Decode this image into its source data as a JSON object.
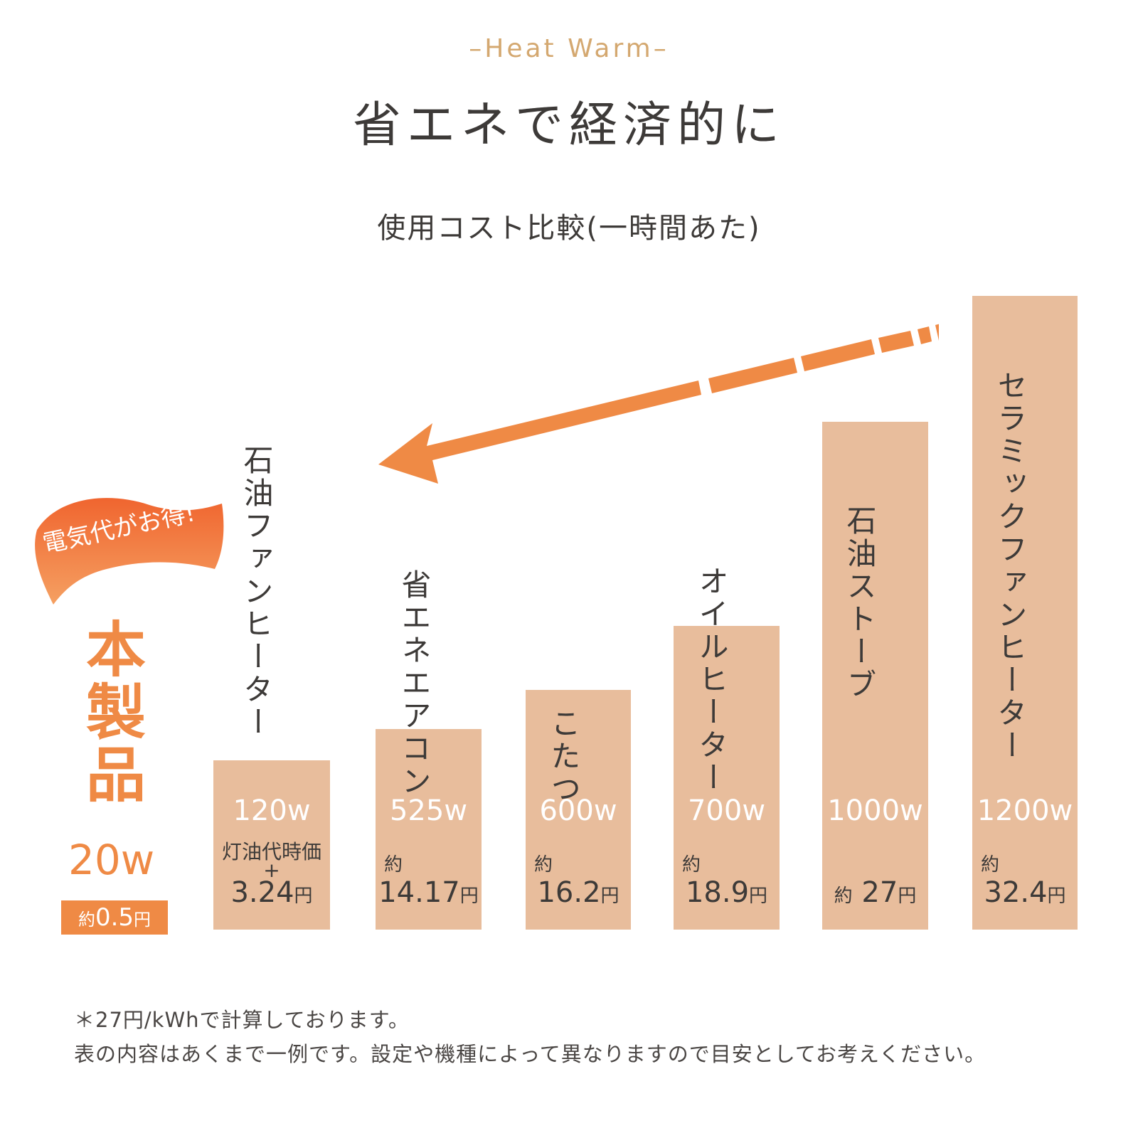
{
  "header": {
    "eyebrow": "–Heat Warm–",
    "title": "省エネで経済的に",
    "subtitle": "使用コスト比較(一時間あた)"
  },
  "badge": {
    "text": "電気代がお得!"
  },
  "product": {
    "name": "本製品",
    "watt": "20w",
    "approx": "約",
    "cost": "0.5",
    "yen": "円"
  },
  "colors": {
    "accent": "#ef8a45",
    "bar": "#e8bd9c",
    "text": "#3d3a38",
    "eyebrow": "#d4a870"
  },
  "chart_data": {
    "type": "bar",
    "title": "使用コスト比較(一時間あた)",
    "unit": "w",
    "categories": [
      "本製品",
      "石油ファンヒーター",
      "省エネエアコン",
      "こたつ",
      "オイルヒーター",
      "石油ストーブ",
      "セラミックファンヒーター"
    ],
    "watts": [
      20,
      120,
      525,
      600,
      700,
      1000,
      1200
    ],
    "cost_yen_per_hour": [
      0.5,
      3.24,
      14.17,
      16.2,
      18.9,
      27,
      32.4
    ]
  },
  "bars": [
    {
      "label": "石油ファンヒーター",
      "watt": "120w",
      "prefix": "灯油代時価\n+",
      "cost": "3.24",
      "yen": "円"
    },
    {
      "label": "省エネエアコン",
      "watt": "525w",
      "prefix": "約",
      "cost": "14.17",
      "yen": "円"
    },
    {
      "label": "こたつ",
      "watt": "600w",
      "prefix": "約",
      "cost": "16.2",
      "yen": "円"
    },
    {
      "label": "オイルヒーター",
      "watt": "700w",
      "prefix": "約",
      "cost": "18.9",
      "yen": "円"
    },
    {
      "label": "石油ストーブ",
      "watt": "1000w",
      "prefix": "約",
      "cost": "27",
      "yen": "円"
    },
    {
      "label": "セラミックファンヒーター",
      "watt": "1200w",
      "prefix": "約",
      "cost": "32.4",
      "yen": "円"
    }
  ],
  "notes": {
    "line1": "＊27円/kWhで計算しております。",
    "line2": "表の内容はあくまで一例です。設定や機種によって異なりますので目安としてお考えください。"
  }
}
